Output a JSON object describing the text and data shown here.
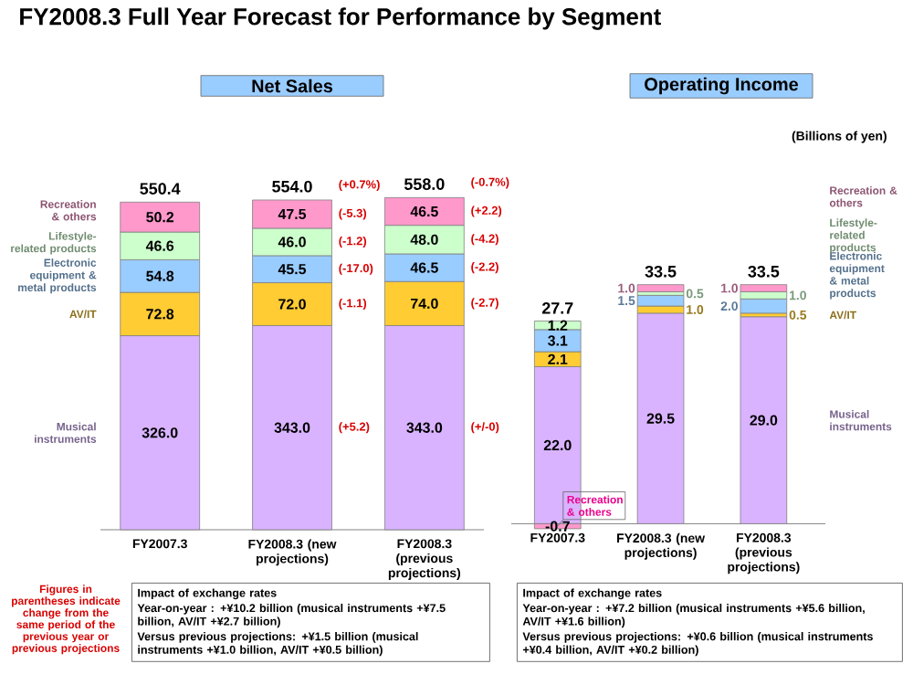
{
  "chart_data": [
    {
      "type": "bar",
      "stacked": true,
      "title": "FY2008.3 Full Year Forecast for Performance by Segment",
      "subtitle": "Net Sales",
      "categories": [
        "FY2007.3",
        "FY2008.3 (new projections)",
        "FY2008.3 (previous projections)"
      ],
      "series": [
        {
          "name": "Musical instruments",
          "color": "#d9b3ff",
          "values": [
            326.0,
            343.0,
            343.0
          ],
          "value_labels": [
            "326.0",
            "343.0",
            "343.0"
          ]
        },
        {
          "name": "AV/IT",
          "color": "#ffcc33",
          "values": [
            72.8,
            72.0,
            74.0
          ],
          "value_labels": [
            "72.8",
            "72.0",
            "74.0"
          ]
        },
        {
          "name": "Electronic equipment & metal products",
          "color": "#99ccff",
          "values": [
            54.8,
            45.5,
            46.5
          ],
          "value_labels": [
            "54.8",
            "45.5",
            "46.5"
          ]
        },
        {
          "name": "Lifestyle-related products",
          "color": "#ccffcc",
          "values": [
            46.6,
            46.0,
            48.0
          ],
          "value_labels": [
            "46.6",
            "46.0",
            "48.0"
          ]
        },
        {
          "name": "Recreation & others",
          "color": "#ff99cc",
          "values": [
            50.2,
            47.5,
            46.5
          ],
          "value_labels": [
            "50.2",
            "47.5",
            "46.5"
          ]
        }
      ],
      "totals": [
        "550.4",
        "554.0",
        "558.0"
      ],
      "legend": "left",
      "annotations": [
        "(+0.7%)",
        "(-5.3)",
        "(-1.2)",
        "(-17.0)",
        "(-1.1)",
        "(+5.2)",
        "(-0.7%)",
        "(+2.2)",
        "(-4.2)",
        "(-2.2)",
        "(-2.7)",
        "(+/-0)",
        "Figures in parentheses indicate change from the same period of the previous year or previous projections",
        "Impact of exchange rates",
        "Year-on-year : +¥10.2 billion (musical instruments +¥7.5 billion, AV/IT +¥2.7 billion)",
        "Versus previous projections: +¥1.5 billion (musical instruments +¥1.0 billion, AV/IT +¥0.5 billion)"
      ]
    },
    {
      "type": "bar",
      "stacked": true,
      "title": "Operating Income",
      "categories": [
        "FY2007.3",
        "FY2008.3 (new projections)",
        "FY2008.3 (previous projections)"
      ],
      "series": [
        {
          "name": "Musical instruments",
          "color": "#d9b3ff",
          "values": [
            22.0,
            29.5,
            29.0
          ],
          "value_labels": [
            "22.0",
            "29.5",
            "29.0"
          ]
        },
        {
          "name": "AV/IT",
          "color": "#ffcc33",
          "values": [
            2.1,
            1.0,
            0.5
          ],
          "value_labels": [
            "2.1",
            "1.0",
            "0.5"
          ]
        },
        {
          "name": "Electronic equipment & metal products",
          "color": "#99ccff",
          "values": [
            3.1,
            1.5,
            2.0
          ],
          "value_labels": [
            "3.1",
            "1.5",
            "2.0"
          ]
        },
        {
          "name": "Lifestyle-related products",
          "color": "#ccffcc",
          "values": [
            1.2,
            0.5,
            1.0
          ],
          "value_labels": [
            "1.2",
            "0.5",
            "1.0"
          ]
        },
        {
          "name": "Recreation & others",
          "color": "#ff99cc",
          "values": [
            -0.7,
            1.0,
            1.0
          ],
          "value_labels": [
            "-0.7",
            "1.0",
            "1.0"
          ]
        }
      ],
      "totals": [
        "27.7",
        "33.5",
        "33.5"
      ],
      "legend": "right",
      "annotations": [
        "Recreation & others",
        "(Billions of yen)",
        "Impact of exchange rates",
        "Year-on-year : +¥7.2 billion (musical instruments +¥5.6 billion, AV/IT +¥1.6 billion)",
        "Versus previous projections: +¥0.6 billion (musical instruments +¥0.4 billion, AV/IT +¥0.2 billion)"
      ]
    }
  ]
}
